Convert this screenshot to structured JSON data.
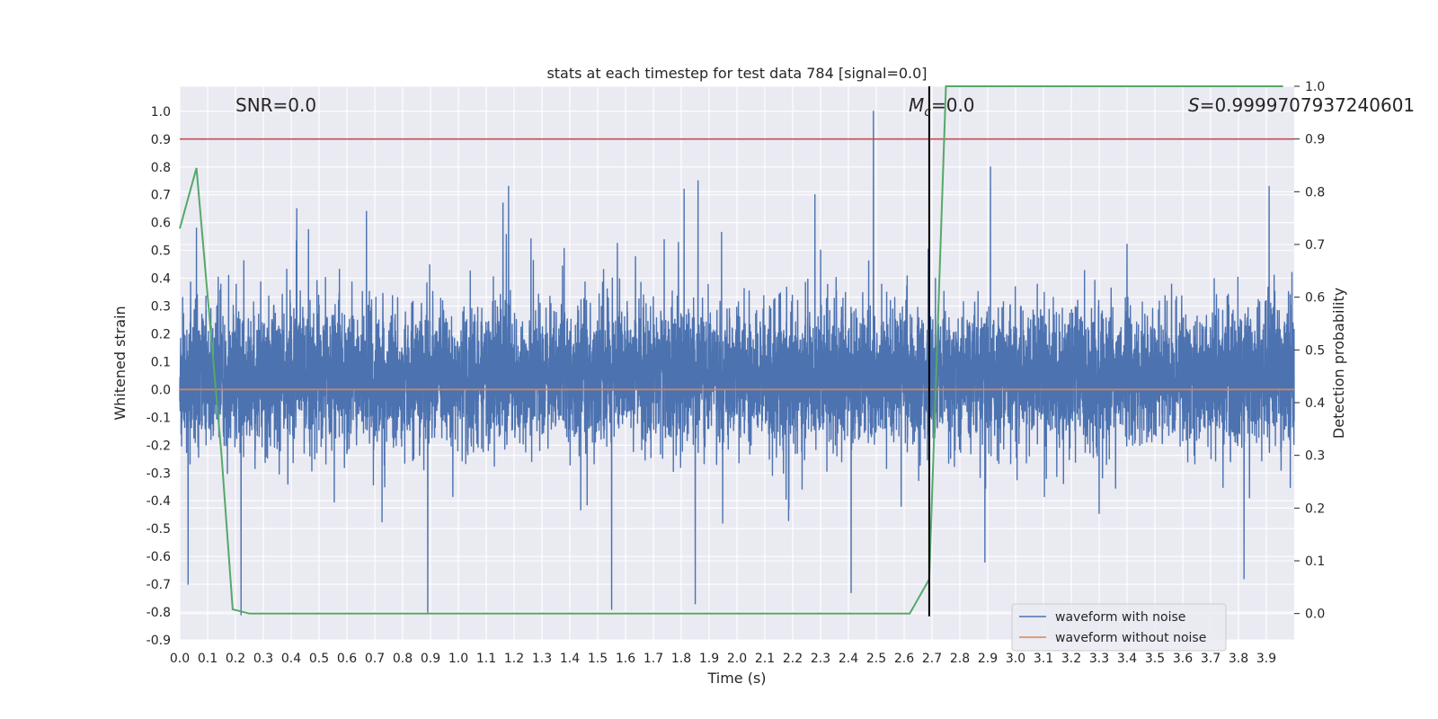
{
  "chart_data": {
    "type": "line",
    "title": "stats at each timestep for test data 784 [signal=0.0]",
    "xlabel": "Time (s)",
    "ylabel": "Whitened strain",
    "y2label": "Detection probability",
    "xlim": [
      0.0,
      4.0
    ],
    "ylim": [
      -0.9,
      1.09
    ],
    "y2lim": [
      -0.05,
      1.0
    ],
    "grid": true,
    "legend_position": "lower-right",
    "x_ticks": [
      "0.0",
      "0.1",
      "0.2",
      "0.3",
      "0.4",
      "0.5",
      "0.6",
      "0.7",
      "0.8",
      "0.9",
      "1.0",
      "1.1",
      "1.2",
      "1.3",
      "1.4",
      "1.5",
      "1.6",
      "1.7",
      "1.8",
      "1.9",
      "2.0",
      "2.1",
      "2.2",
      "2.3",
      "2.4",
      "2.5",
      "2.6",
      "2.7",
      "2.8",
      "2.9",
      "3.0",
      "3.1",
      "3.2",
      "3.3",
      "3.4",
      "3.5",
      "3.6",
      "3.7",
      "3.8",
      "3.9"
    ],
    "y_ticks": [
      "1.0",
      "0.9",
      "0.8",
      "0.7",
      "0.6",
      "0.5",
      "0.4",
      "0.3",
      "0.2",
      "0.1",
      "0.0",
      "-0.1",
      "-0.2",
      "-0.3",
      "-0.4",
      "-0.5",
      "-0.6",
      "-0.7",
      "-0.8",
      "-0.9"
    ],
    "y2_ticks": [
      "1.0",
      "0.9",
      "0.8",
      "0.7",
      "0.6",
      "0.5",
      "0.4",
      "0.3",
      "0.2",
      "0.1",
      "0.0"
    ],
    "annotations": {
      "snr": "SNR=0.0",
      "mc_symbol": "M",
      "mc_sub": "c",
      "mc_value": "=0.0",
      "s_symbol": "S",
      "s_value": "=0.9999707937240601"
    },
    "series": [
      {
        "name": "waveform with noise",
        "color": "#4c72b0",
        "kind": "noise",
        "n_samples": 8000,
        "typical_range": [
          -0.43,
          0.6
        ],
        "peak_max": 1.0,
        "peak_max_time": 2.49,
        "notable_peaks": [
          {
            "x": 0.06,
            "y": 0.58
          },
          {
            "x": 0.42,
            "y": 0.65
          },
          {
            "x": 0.67,
            "y": 0.64
          },
          {
            "x": 1.16,
            "y": 0.67
          },
          {
            "x": 1.18,
            "y": 0.73
          },
          {
            "x": 1.81,
            "y": 0.72
          },
          {
            "x": 1.86,
            "y": 0.75
          },
          {
            "x": 2.28,
            "y": 0.7
          },
          {
            "x": 2.49,
            "y": 1.0
          },
          {
            "x": 2.91,
            "y": 0.8
          },
          {
            "x": 3.91,
            "y": 0.73
          }
        ],
        "notable_troughs": [
          {
            "x": 0.03,
            "y": -0.7
          },
          {
            "x": 0.22,
            "y": -0.81
          },
          {
            "x": 0.89,
            "y": -0.8
          },
          {
            "x": 1.55,
            "y": -0.79
          },
          {
            "x": 1.85,
            "y": -0.77
          },
          {
            "x": 2.41,
            "y": -0.73
          },
          {
            "x": 2.89,
            "y": -0.62
          },
          {
            "x": 3.82,
            "y": -0.68
          }
        ]
      },
      {
        "name": "waveform without noise",
        "color": "#dd8452",
        "x": [
          0.0,
          4.0
        ],
        "y": [
          0.0,
          0.0
        ]
      },
      {
        "name": "detection probability",
        "color": "#55a868",
        "axis": "right",
        "x": [
          0.0,
          0.06,
          0.15,
          0.19,
          0.25,
          2.62,
          2.69,
          2.75,
          3.96
        ],
        "y": [
          0.73,
          0.845,
          0.3,
          0.008,
          0.0,
          0.0,
          0.065,
          1.0,
          1.0
        ]
      }
    ],
    "hlines": [
      {
        "axis": "right",
        "y": 0.9,
        "color": "#c44e52"
      }
    ],
    "vlines": [
      {
        "x": 2.69,
        "y_from": -0.815,
        "y_to": 1.0,
        "color": "#000000"
      }
    ]
  }
}
